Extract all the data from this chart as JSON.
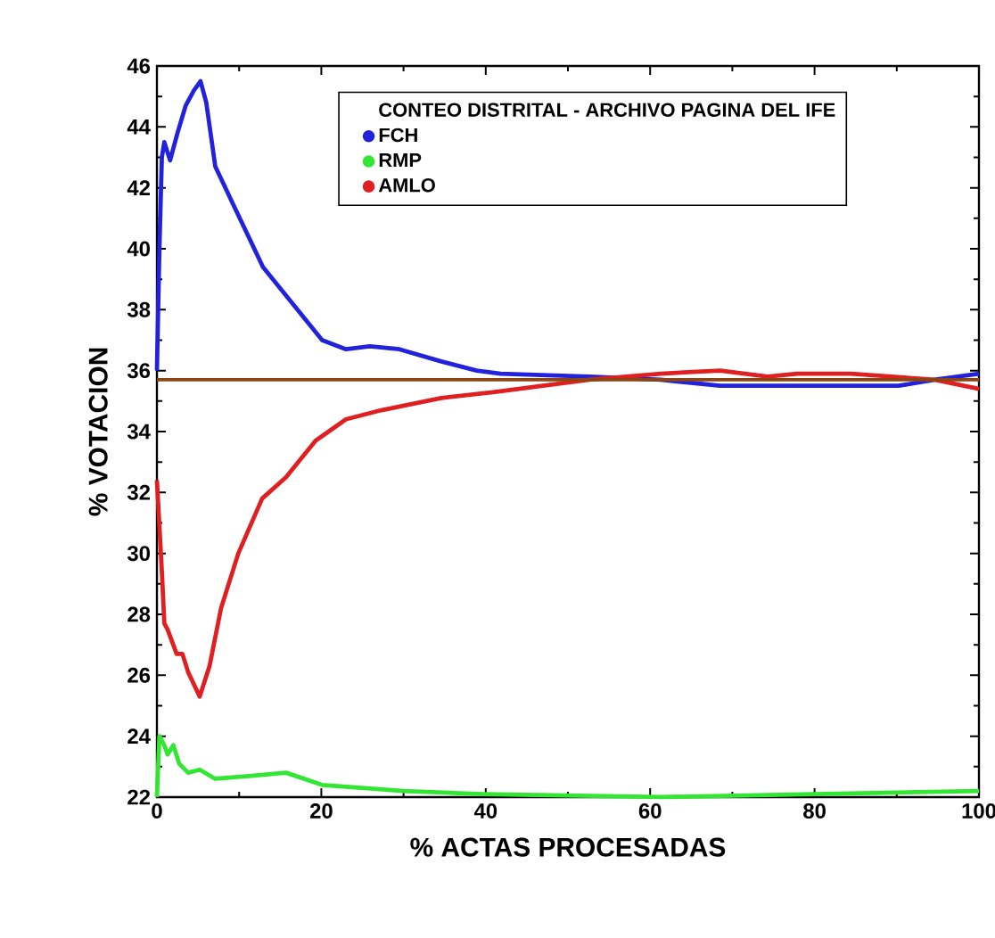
{
  "chart_data": {
    "type": "line",
    "xlabel": "% ACTAS PROCESADAS",
    "ylabel": "% VOTACION",
    "legend_title": "CONTEO DISTRITAL - ARCHIVO PAGINA DEL IFE",
    "xlim": [
      0,
      100
    ],
    "xticks": [
      0,
      20,
      40,
      60,
      80,
      100
    ],
    "ylim": [
      22,
      46
    ],
    "yticks": [
      22,
      24,
      26,
      28,
      30,
      32,
      34,
      36,
      38,
      40,
      42,
      44,
      46
    ],
    "legend": "top",
    "grid": false,
    "marker": "none",
    "line_style": "solid",
    "ref_lines": [
      {
        "axis": "y",
        "value": 35.7,
        "color": "#8b4513"
      }
    ],
    "series": [
      {
        "name": "FCH",
        "color": "#2222dd",
        "x": [
          0,
          0.3,
          0.6,
          0.9,
          1.6,
          2.5,
          3.5,
          4.5,
          5.3,
          6.0,
          7.1,
          9.2,
          12.9,
          16.5,
          20.1,
          23,
          25.9,
          29.5,
          34.6,
          38.9,
          41.8,
          52.6,
          61.3,
          68.5,
          77.9,
          90.2,
          94.6,
          100
        ],
        "values": [
          36.0,
          40.0,
          43.0,
          43.5,
          42.9,
          43.8,
          44.7,
          45.2,
          45.5,
          44.8,
          42.7,
          41.5,
          39.4,
          38.2,
          37.0,
          36.7,
          36.8,
          36.7,
          36.3,
          36.0,
          35.9,
          35.8,
          35.7,
          35.5,
          35.5,
          35.5,
          35.7,
          35.9
        ]
      },
      {
        "name": "RMP",
        "color": "#33e633",
        "x": [
          0,
          0.3,
          0.9,
          1.3,
          2.0,
          2.7,
          3.8,
          5.2,
          7.1,
          11.5,
          15.7,
          20.1,
          30,
          39.6,
          61.3,
          80,
          100
        ],
        "values": [
          22.0,
          24.0,
          23.7,
          23.4,
          23.7,
          23.1,
          22.8,
          22.9,
          22.6,
          22.7,
          22.8,
          22.4,
          22.2,
          22.1,
          22.0,
          22.1,
          22.2
        ]
      },
      {
        "name": "AMLO",
        "color": "#e02020",
        "x": [
          0,
          0.6,
          0.9,
          1.3,
          2.4,
          3.1,
          3.8,
          5.2,
          6.4,
          7.8,
          9.9,
          12.8,
          15.7,
          19.3,
          23,
          27.3,
          34.6,
          41.1,
          52.6,
          61.3,
          68.5,
          74.3,
          77.9,
          84.4,
          94.6,
          100
        ],
        "values": [
          32.4,
          29.4,
          27.7,
          27.5,
          26.7,
          26.7,
          26.1,
          25.3,
          26.3,
          28.2,
          30.0,
          31.8,
          32.5,
          33.7,
          34.4,
          34.7,
          35.1,
          35.3,
          35.7,
          35.9,
          36.0,
          35.8,
          35.9,
          35.9,
          35.7,
          35.4
        ]
      }
    ]
  }
}
